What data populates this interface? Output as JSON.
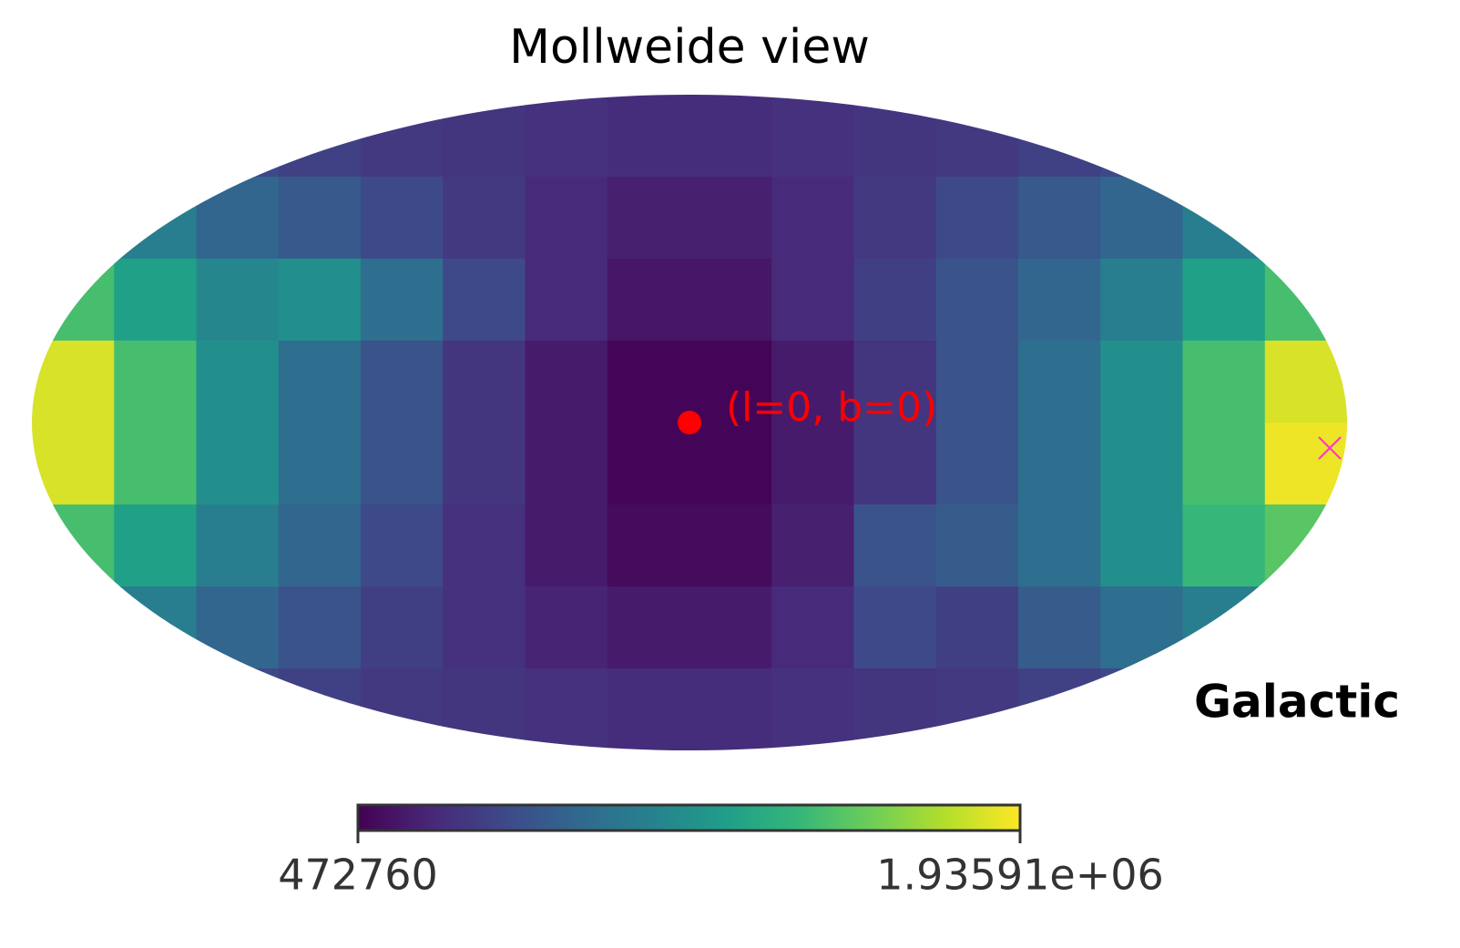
{
  "chart_data": {
    "type": "mollweide",
    "title": "Mollweide view",
    "annotation": "(l=0, b=0)",
    "coord_label": "Galactic",
    "colormap": [
      "#440154",
      "#482878",
      "#3e4989",
      "#31688e",
      "#26828e",
      "#1f9e89",
      "#35b779",
      "#6ece58",
      "#b5de2b",
      "#fde725"
    ],
    "zlim": [
      472760,
      1935910
    ],
    "zticks": [
      472760,
      {
        "value": 1935910,
        "label": "1.93591e+06"
      }
    ],
    "z": [
      [
        900000,
        850000,
        800000,
        760000,
        720000,
        700000,
        680000,
        660000,
        660000,
        680000,
        700000,
        720000,
        760000,
        800000,
        850000,
        900000
      ],
      [
        1200000,
        1100000,
        950000,
        880000,
        800000,
        720000,
        650000,
        600000,
        600000,
        650000,
        720000,
        800000,
        880000,
        950000,
        1100000,
        1200000
      ],
      [
        1500000,
        1300000,
        1150000,
        1200000,
        1000000,
        800000,
        650000,
        560000,
        560000,
        650000,
        750000,
        850000,
        950000,
        1100000,
        1300000,
        1500000
      ],
      [
        1850000,
        1500000,
        1200000,
        1000000,
        850000,
        700000,
        580000,
        490000,
        490000,
        580000,
        700000,
        850000,
        1000000,
        1200000,
        1500000,
        1850000
      ],
      [
        1850000,
        1500000,
        1200000,
        1000000,
        850000,
        700000,
        580000,
        490000,
        490000,
        580000,
        700000,
        850000,
        1000000,
        1200000,
        1500000,
        1900000
      ],
      [
        1500000,
        1300000,
        1100000,
        950000,
        800000,
        680000,
        580000,
        520000,
        520000,
        600000,
        850000,
        900000,
        1000000,
        1200000,
        1450000,
        1550000
      ],
      [
        1200000,
        1100000,
        950000,
        850000,
        750000,
        680000,
        620000,
        580000,
        580000,
        650000,
        800000,
        750000,
        900000,
        1000000,
        1100000,
        1200000
      ],
      [
        900000,
        850000,
        800000,
        760000,
        720000,
        700000,
        680000,
        660000,
        660000,
        680000,
        700000,
        720000,
        760000,
        800000,
        850000,
        900000
      ]
    ]
  }
}
